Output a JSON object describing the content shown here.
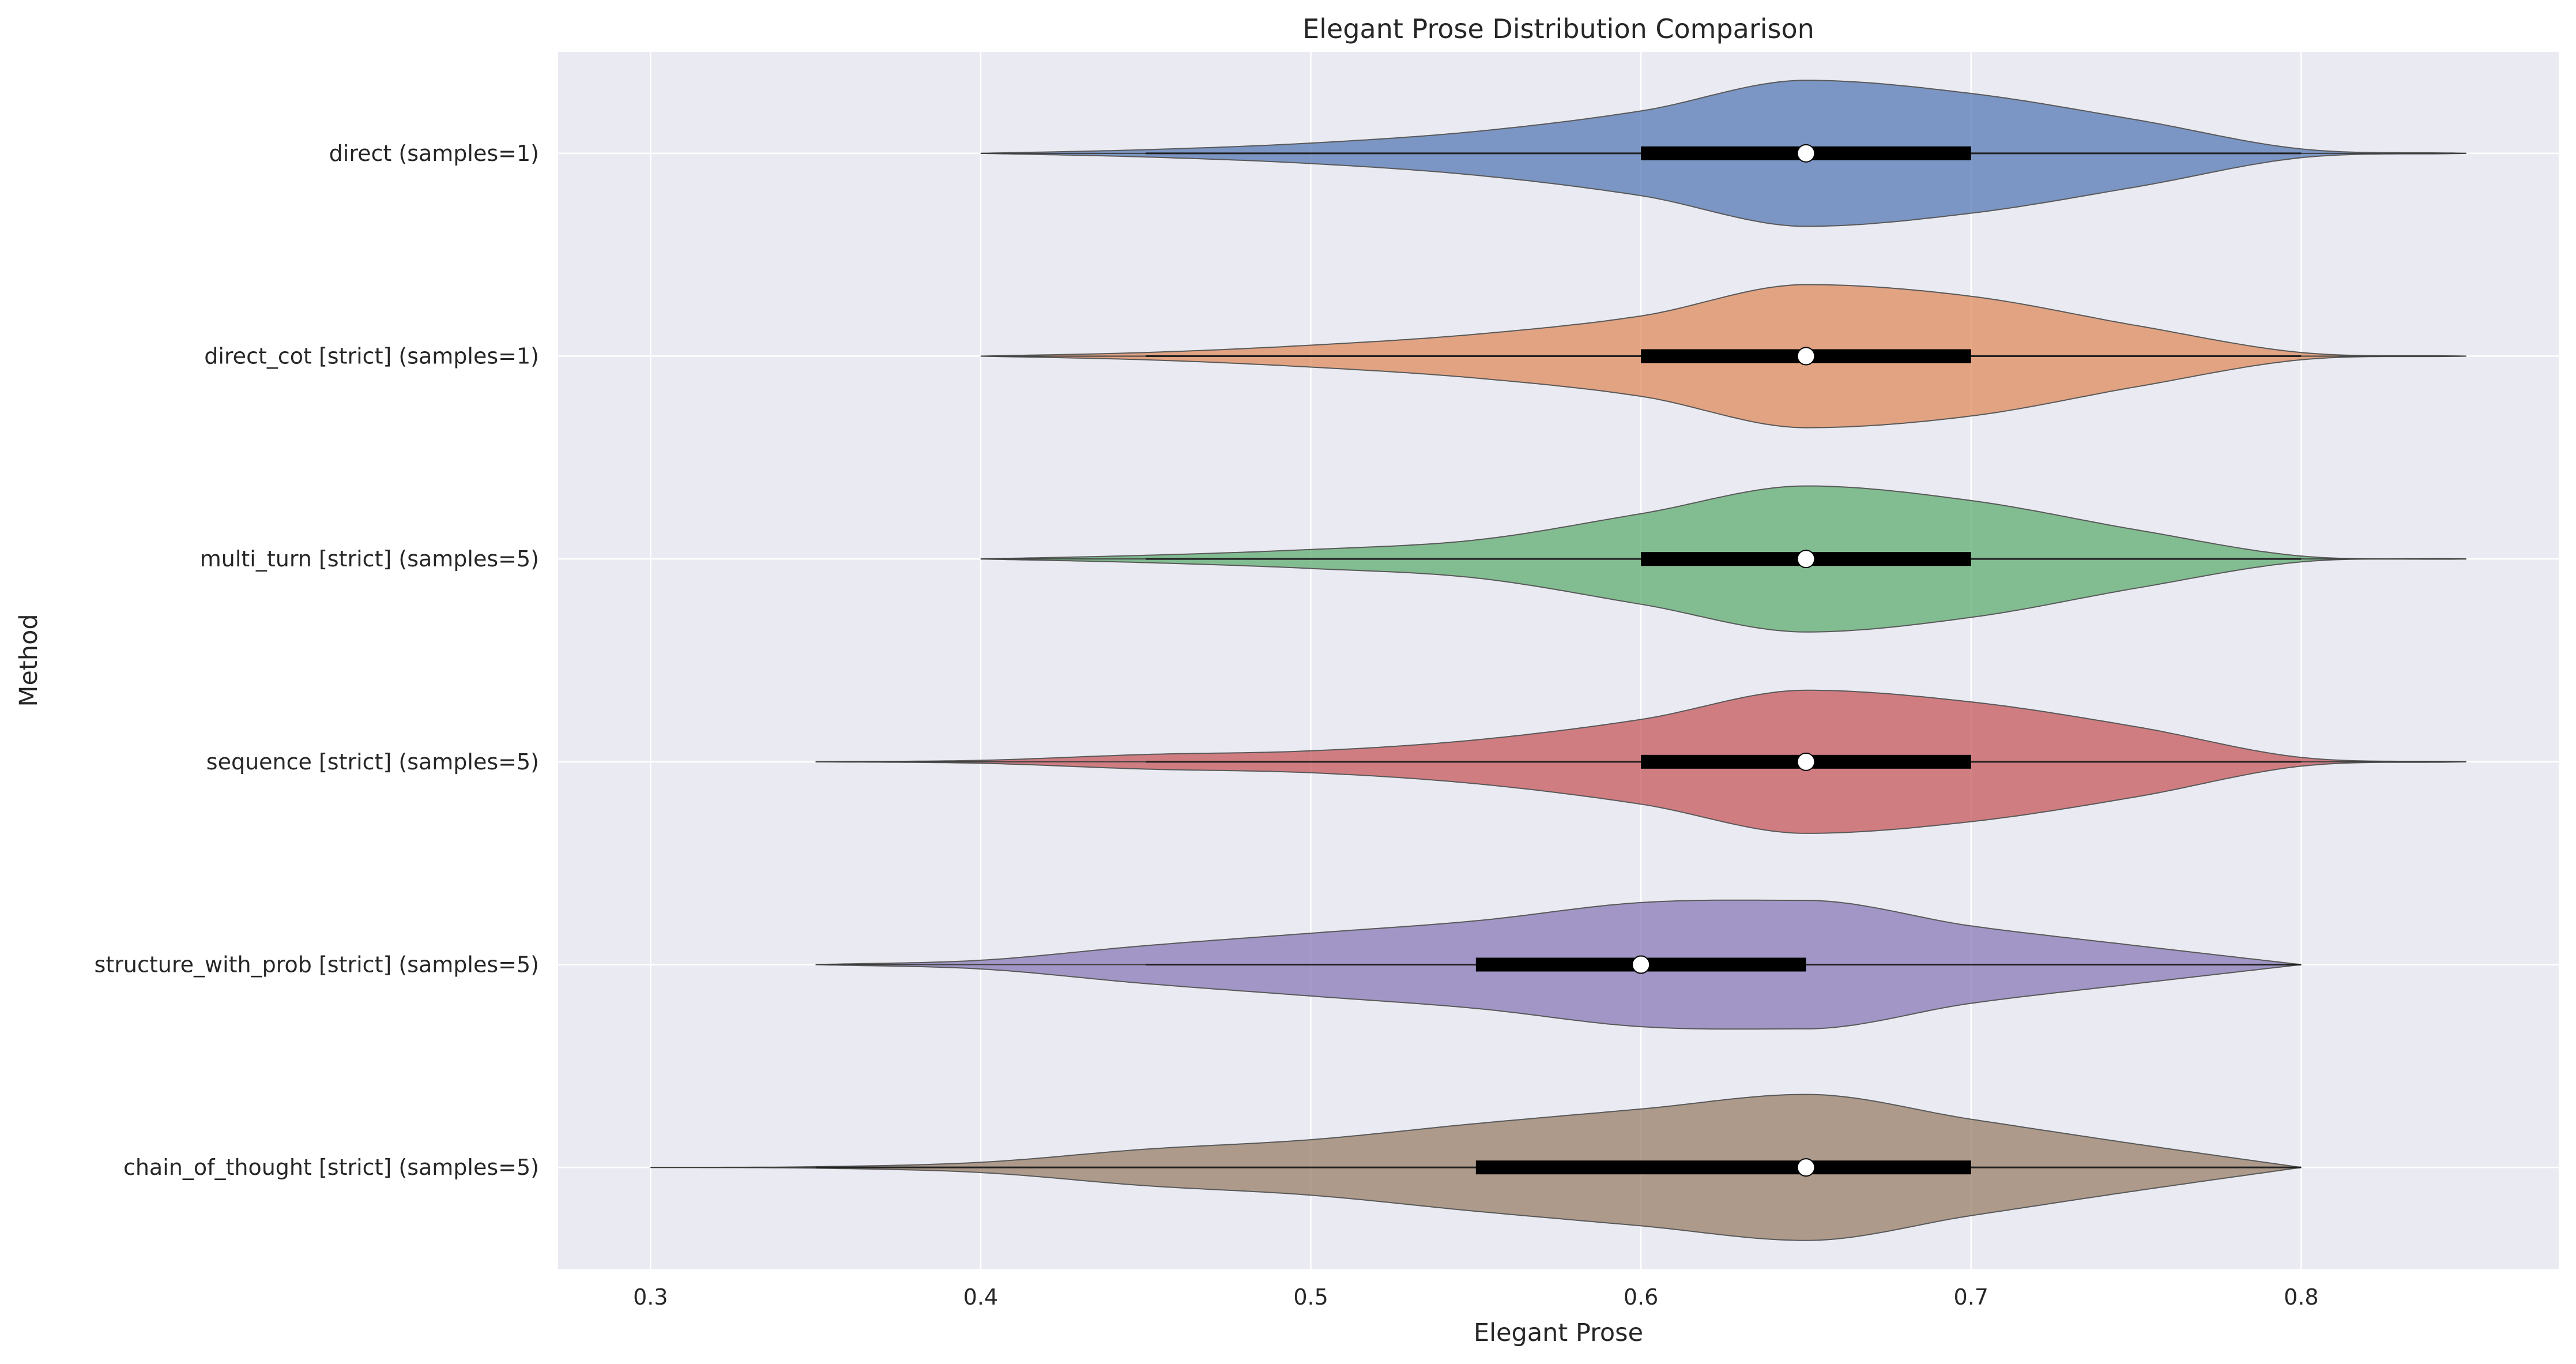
{
  "chart_data": {
    "type": "violin",
    "title": "Elegant Prose Distribution Comparison",
    "xlabel": "Elegant Prose",
    "ylabel": "Method",
    "xlim": [
      0.272,
      0.878
    ],
    "x_ticks": [
      "0.3",
      "0.4",
      "0.5",
      "0.6",
      "0.7",
      "0.8"
    ],
    "grid": true,
    "orientation": "horizontal",
    "series": [
      {
        "name": "direct (samples=1)",
        "color": "#4C72B0",
        "range": [
          0.4,
          0.85
        ],
        "whisker": [
          0.45,
          0.8
        ],
        "q1": 0.6,
        "median": 0.65,
        "q3": 0.7,
        "density": [
          [
            0.4,
            0.0
          ],
          [
            0.45,
            0.05
          ],
          [
            0.5,
            0.14
          ],
          [
            0.55,
            0.3
          ],
          [
            0.6,
            0.58
          ],
          [
            0.65,
            1.0
          ],
          [
            0.7,
            0.82
          ],
          [
            0.75,
            0.46
          ],
          [
            0.8,
            0.06
          ],
          [
            0.85,
            0.0
          ]
        ]
      },
      {
        "name": "direct_cot [strict] (samples=1)",
        "color": "#DD8452",
        "range": [
          0.4,
          0.85
        ],
        "whisker": [
          0.45,
          0.8
        ],
        "q1": 0.6,
        "median": 0.65,
        "q3": 0.7,
        "density": [
          [
            0.4,
            0.0
          ],
          [
            0.45,
            0.05
          ],
          [
            0.5,
            0.15
          ],
          [
            0.55,
            0.3
          ],
          [
            0.6,
            0.55
          ],
          [
            0.65,
            0.98
          ],
          [
            0.7,
            0.82
          ],
          [
            0.75,
            0.42
          ],
          [
            0.8,
            0.05
          ],
          [
            0.85,
            0.0
          ]
        ]
      },
      {
        "name": "multi_turn [strict] (samples=5)",
        "color": "#55A868",
        "range": [
          0.4,
          0.85
        ],
        "whisker": [
          0.45,
          0.8
        ],
        "q1": 0.6,
        "median": 0.65,
        "q3": 0.7,
        "density": [
          [
            0.4,
            0.0
          ],
          [
            0.45,
            0.05
          ],
          [
            0.5,
            0.13
          ],
          [
            0.55,
            0.26
          ],
          [
            0.6,
            0.62
          ],
          [
            0.65,
            1.0
          ],
          [
            0.7,
            0.8
          ],
          [
            0.75,
            0.4
          ],
          [
            0.8,
            0.04
          ],
          [
            0.85,
            0.0
          ]
        ]
      },
      {
        "name": "sequence [strict] (samples=5)",
        "color": "#C44E52",
        "range": [
          0.35,
          0.85
        ],
        "whisker": [
          0.45,
          0.8
        ],
        "q1": 0.6,
        "median": 0.65,
        "q3": 0.7,
        "density": [
          [
            0.35,
            0.0
          ],
          [
            0.4,
            0.02
          ],
          [
            0.45,
            0.1
          ],
          [
            0.5,
            0.15
          ],
          [
            0.55,
            0.3
          ],
          [
            0.6,
            0.58
          ],
          [
            0.65,
            0.98
          ],
          [
            0.7,
            0.82
          ],
          [
            0.75,
            0.48
          ],
          [
            0.8,
            0.06
          ],
          [
            0.85,
            0.0
          ]
        ]
      },
      {
        "name": "structure_with_prob [strict] (samples=5)",
        "color": "#8172B3",
        "range": [
          0.35,
          0.8
        ],
        "whisker": [
          0.45,
          0.8
        ],
        "q1": 0.55,
        "median": 0.6,
        "q3": 0.65,
        "density": [
          [
            0.35,
            0.0
          ],
          [
            0.4,
            0.06
          ],
          [
            0.45,
            0.26
          ],
          [
            0.5,
            0.43
          ],
          [
            0.55,
            0.6
          ],
          [
            0.6,
            0.85
          ],
          [
            0.65,
            0.88
          ],
          [
            0.7,
            0.53
          ],
          [
            0.75,
            0.26
          ],
          [
            0.8,
            0.0
          ]
        ]
      },
      {
        "name": "chain_of_thought [strict] (samples=5)",
        "color": "#937860",
        "range": [
          0.3,
          0.8
        ],
        "whisker": [
          0.35,
          0.8
        ],
        "q1": 0.55,
        "median": 0.65,
        "q3": 0.7,
        "density": [
          [
            0.3,
            0.0
          ],
          [
            0.35,
            0.01
          ],
          [
            0.4,
            0.07
          ],
          [
            0.45,
            0.25
          ],
          [
            0.5,
            0.38
          ],
          [
            0.55,
            0.6
          ],
          [
            0.6,
            0.8
          ],
          [
            0.65,
            1.0
          ],
          [
            0.7,
            0.66
          ],
          [
            0.75,
            0.32
          ],
          [
            0.8,
            0.0
          ]
        ]
      }
    ]
  }
}
